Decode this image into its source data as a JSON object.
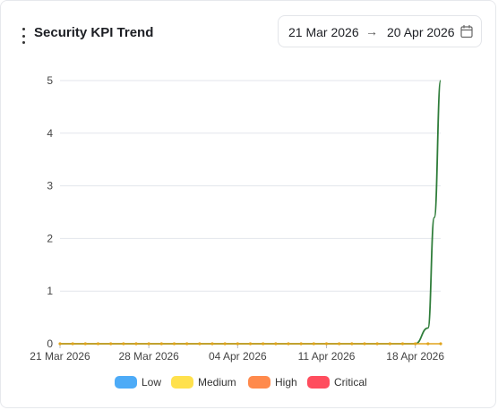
{
  "widget": {
    "title": "Security KPI Trend",
    "menu_icon": "kebab-vertical-icon"
  },
  "date_range": {
    "start": "21 Mar 2026",
    "arrow": "→",
    "end": "20 Apr 2026",
    "icon": "calendar-icon"
  },
  "chart_data": {
    "type": "line",
    "title": "Security KPI Trend",
    "xlabel": "",
    "ylabel": "",
    "x_ticks": [
      "21 Mar 2026",
      "28 Mar 2026",
      "04 Apr 2026",
      "11 Apr 2026",
      "18 Apr 2026"
    ],
    "y_ticks": [
      0,
      1,
      2,
      3,
      4,
      5
    ],
    "ylim": [
      0,
      5
    ],
    "x_domain": [
      "2026-03-21",
      "2026-04-20"
    ],
    "grid": true,
    "legend_position": "bottom",
    "legend": [
      {
        "name": "Low",
        "color": "#4dabf7"
      },
      {
        "name": "Medium",
        "color": "#ffe14d"
      },
      {
        "name": "High",
        "color": "#ff8a4c"
      },
      {
        "name": "Critical",
        "color": "#ff4d5e"
      }
    ],
    "series": [
      {
        "color": "#2f7d3a",
        "curve": "smooth",
        "points": [
          {
            "x": "2026-03-21",
            "y": 0
          },
          {
            "x": "2026-04-18",
            "y": 0
          },
          {
            "x": "2026-04-19",
            "y": 0.3
          },
          {
            "x": "2026-04-19T12:00",
            "y": 2.4
          },
          {
            "x": "2026-04-20",
            "y": 5
          }
        ]
      },
      {
        "color": "#e0a41c",
        "markers": true,
        "points": [
          {
            "x": "2026-03-21",
            "y": 0
          },
          {
            "x": "2026-03-22",
            "y": 0
          },
          {
            "x": "2026-03-23",
            "y": 0
          },
          {
            "x": "2026-03-24",
            "y": 0
          },
          {
            "x": "2026-03-25",
            "y": 0
          },
          {
            "x": "2026-03-26",
            "y": 0
          },
          {
            "x": "2026-03-27",
            "y": 0
          },
          {
            "x": "2026-03-28",
            "y": 0
          },
          {
            "x": "2026-03-29",
            "y": 0
          },
          {
            "x": "2026-03-30",
            "y": 0
          },
          {
            "x": "2026-03-31",
            "y": 0
          },
          {
            "x": "2026-04-01",
            "y": 0
          },
          {
            "x": "2026-04-02",
            "y": 0
          },
          {
            "x": "2026-04-03",
            "y": 0
          },
          {
            "x": "2026-04-04",
            "y": 0
          },
          {
            "x": "2026-04-05",
            "y": 0
          },
          {
            "x": "2026-04-06",
            "y": 0
          },
          {
            "x": "2026-04-07",
            "y": 0
          },
          {
            "x": "2026-04-08",
            "y": 0
          },
          {
            "x": "2026-04-09",
            "y": 0
          },
          {
            "x": "2026-04-10",
            "y": 0
          },
          {
            "x": "2026-04-11",
            "y": 0
          },
          {
            "x": "2026-04-12",
            "y": 0
          },
          {
            "x": "2026-04-13",
            "y": 0
          },
          {
            "x": "2026-04-14",
            "y": 0
          },
          {
            "x": "2026-04-15",
            "y": 0
          },
          {
            "x": "2026-04-16",
            "y": 0
          },
          {
            "x": "2026-04-17",
            "y": 0
          },
          {
            "x": "2026-04-18",
            "y": 0
          },
          {
            "x": "2026-04-19",
            "y": 0
          },
          {
            "x": "2026-04-20",
            "y": 0
          }
        ]
      }
    ]
  }
}
